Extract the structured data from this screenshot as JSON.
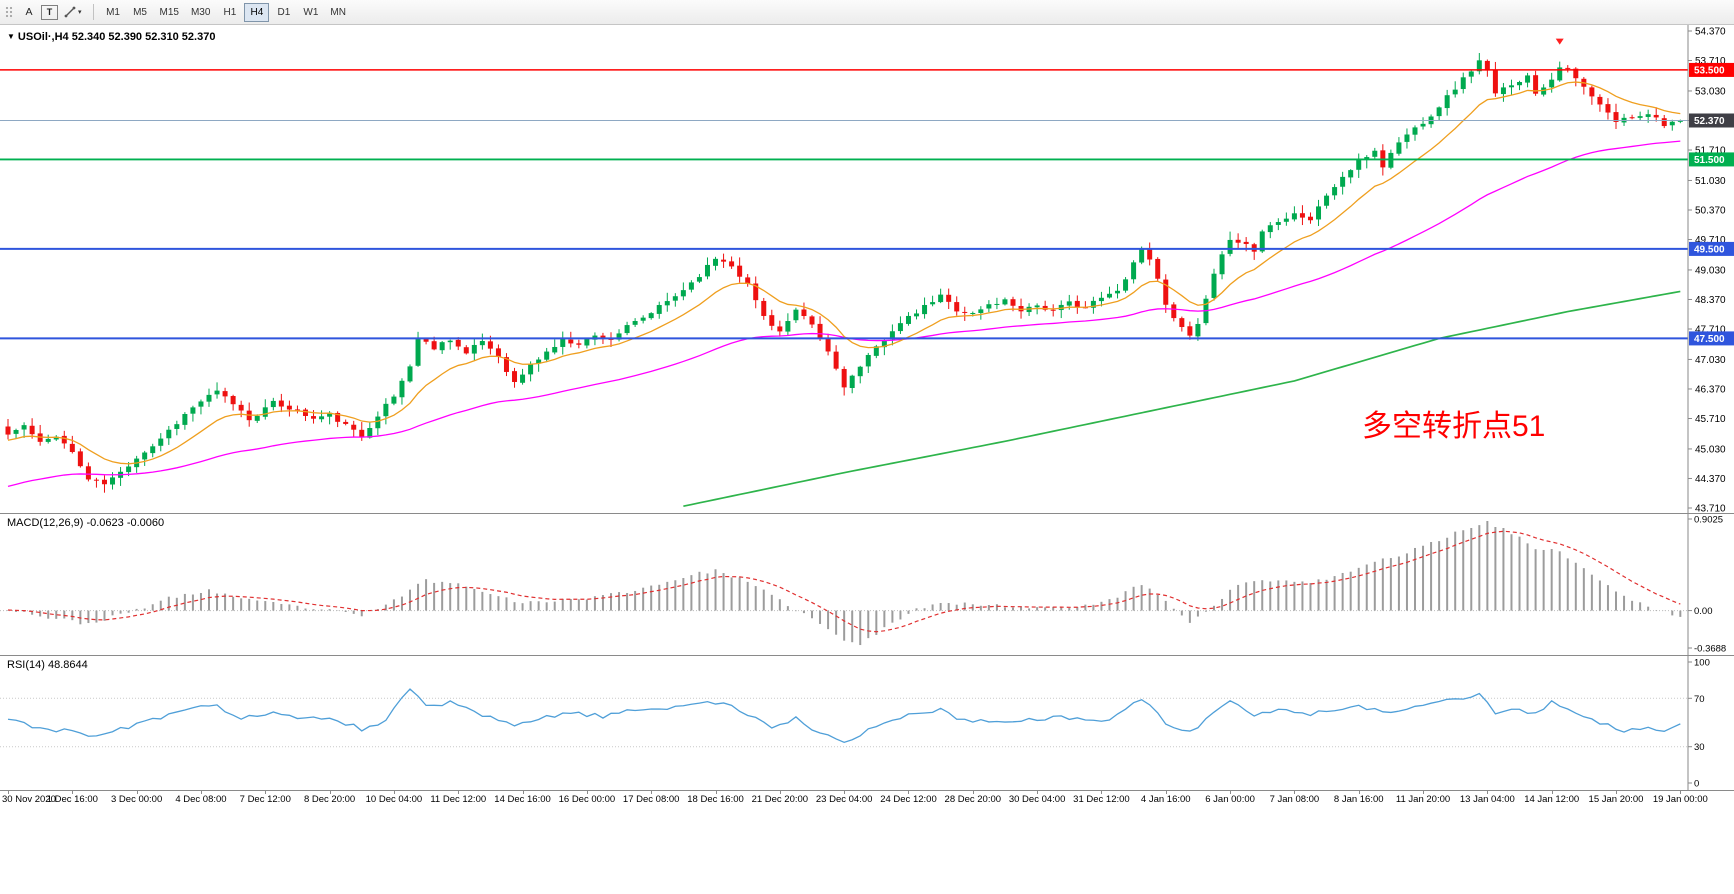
{
  "icons": {
    "collapse": "▼",
    "caret": "▾"
  },
  "toolbar": {
    "buttons": {
      "annotate": "A",
      "text": "T"
    },
    "timeframes": [
      "M1",
      "M5",
      "M15",
      "M30",
      "H1",
      "H4",
      "D1",
      "W1",
      "MN"
    ],
    "active_timeframe": "H4"
  },
  "chart": {
    "symbol_line": "USOil·,H4  52.340 52.390 52.310 52.370",
    "annotation": "多空转折点51",
    "annotation_color": "#ff0000",
    "colors": {
      "up": "#00a94f",
      "down": "#ee1111",
      "ma_fast": "#ef9f1f",
      "ma_slow": "#ff00ff",
      "ma_long": "#2eb44b",
      "current_line": "#8ea8c3",
      "current_badge": "#3f3f46",
      "axis_line": "#8a8a8a"
    },
    "price_axis": {
      "max": 54.37,
      "min": 43.71,
      "ticks": [
        "54.370",
        "53.710",
        "53.030",
        "52.370",
        "51.710",
        "51.030",
        "50.370",
        "49.710",
        "49.030",
        "48.370",
        "47.710",
        "47.030",
        "46.370",
        "45.710",
        "45.030",
        "44.370",
        "43.710"
      ]
    },
    "hlines": [
      {
        "price": 53.5,
        "label": "53.500",
        "color": "#ff0000",
        "badge": "#ff0000",
        "weight": 1.5
      },
      {
        "price": 51.5,
        "label": "51.500",
        "color": "#00b050",
        "badge": "#00b050",
        "weight": 1.8
      },
      {
        "price": 49.5,
        "label": "49.500",
        "color": "#2f55dd",
        "badge": "#2f55dd",
        "weight": 2
      },
      {
        "price": 47.5,
        "label": "47.500",
        "color": "#2f55dd",
        "badge": "#2f55dd",
        "weight": 2
      }
    ],
    "current_price": {
      "value": 52.37,
      "label": "52.370"
    },
    "marker": {
      "index": 193,
      "price": 54.02,
      "color": "#ff2020"
    },
    "time_labels": [
      "30 Nov 2020",
      "1 Dec 16:00",
      "3 Dec 00:00",
      "4 Dec 08:00",
      "7 Dec 12:00",
      "8 Dec 20:00",
      "10 Dec 04:00",
      "11 Dec 12:00",
      "14 Dec 16:00",
      "16 Dec 00:00",
      "17 Dec 08:00",
      "18 Dec 16:00",
      "21 Dec 20:00",
      "23 Dec 04:00",
      "24 Dec 12:00",
      "28 Dec 20:00",
      "30 Dec 04:00",
      "31 Dec 12:00",
      "4 Jan 16:00",
      "6 Jan 00:00",
      "7 Jan 08:00",
      "8 Jan 16:00",
      "11 Jan 20:00",
      "13 Jan 04:00",
      "14 Jan 12:00",
      "15 Jan 20:00",
      "19 Jan 00:00"
    ],
    "bars_per_label": 8,
    "chart_data": {
      "type": "candlestick",
      "symbol": "USOil",
      "timeframe": "H4",
      "bar_count": 209,
      "ohlc_last": {
        "open": 52.34,
        "high": 52.39,
        "low": 52.31,
        "close": 52.37
      },
      "price_waypoints": [
        [
          0,
          45.35
        ],
        [
          2,
          45.55
        ],
        [
          4,
          45.15
        ],
        [
          6,
          45.35
        ],
        [
          8,
          44.95
        ],
        [
          10,
          44.35
        ],
        [
          12,
          44.25
        ],
        [
          14,
          44.5
        ],
        [
          16,
          44.85
        ],
        [
          18,
          45.1
        ],
        [
          20,
          45.45
        ],
        [
          22,
          45.8
        ],
        [
          24,
          46.1
        ],
        [
          26,
          46.3
        ],
        [
          28,
          46.05
        ],
        [
          30,
          45.7
        ],
        [
          33,
          46.05
        ],
        [
          35,
          45.95
        ],
        [
          38,
          45.7
        ],
        [
          40,
          45.8
        ],
        [
          42,
          45.55
        ],
        [
          44,
          45.3
        ],
        [
          46,
          45.8
        ],
        [
          48,
          46.2
        ],
        [
          50,
          46.9
        ],
        [
          51,
          47.5
        ],
        [
          53,
          47.3
        ],
        [
          55,
          47.5
        ],
        [
          57,
          47.15
        ],
        [
          59,
          47.45
        ],
        [
          61,
          47.1
        ],
        [
          63,
          46.5
        ],
        [
          65,
          46.9
        ],
        [
          67,
          47.2
        ],
        [
          69,
          47.45
        ],
        [
          71,
          47.4
        ],
        [
          73,
          47.55
        ],
        [
          75,
          47.5
        ],
        [
          77,
          47.75
        ],
        [
          79,
          47.95
        ],
        [
          81,
          48.2
        ],
        [
          83,
          48.45
        ],
        [
          85,
          48.75
        ],
        [
          87,
          49.1
        ],
        [
          88,
          49.3
        ],
        [
          90,
          49.15
        ],
        [
          92,
          48.7
        ],
        [
          94,
          48.0
        ],
        [
          96,
          47.65
        ],
        [
          98,
          48.1
        ],
        [
          100,
          47.8
        ],
        [
          102,
          47.2
        ],
        [
          104,
          46.45
        ],
        [
          106,
          46.85
        ],
        [
          108,
          47.3
        ],
        [
          110,
          47.7
        ],
        [
          112,
          47.95
        ],
        [
          114,
          48.2
        ],
        [
          116,
          48.45
        ],
        [
          118,
          48.15
        ],
        [
          120,
          48.05
        ],
        [
          122,
          48.25
        ],
        [
          124,
          48.35
        ],
        [
          126,
          48.15
        ],
        [
          128,
          48.25
        ],
        [
          130,
          48.1
        ],
        [
          132,
          48.3
        ],
        [
          134,
          48.2
        ],
        [
          136,
          48.4
        ],
        [
          138,
          48.55
        ],
        [
          140,
          49.2
        ],
        [
          141,
          49.5
        ],
        [
          142,
          49.3
        ],
        [
          144,
          48.3
        ],
        [
          146,
          47.7
        ],
        [
          147,
          47.55
        ],
        [
          148,
          47.8
        ],
        [
          150,
          48.9
        ],
        [
          152,
          49.75
        ],
        [
          154,
          49.6
        ],
        [
          155,
          49.45
        ],
        [
          156,
          49.9
        ],
        [
          158,
          50.15
        ],
        [
          160,
          50.3
        ],
        [
          162,
          50.15
        ],
        [
          164,
          50.7
        ],
        [
          166,
          51.1
        ],
        [
          168,
          51.45
        ],
        [
          170,
          51.7
        ],
        [
          171,
          51.35
        ],
        [
          173,
          51.9
        ],
        [
          175,
          52.2
        ],
        [
          177,
          52.5
        ],
        [
          179,
          52.9
        ],
        [
          181,
          53.3
        ],
        [
          183,
          53.7
        ],
        [
          184,
          53.45
        ],
        [
          185,
          52.95
        ],
        [
          187,
          53.2
        ],
        [
          189,
          53.35
        ],
        [
          190,
          53.0
        ],
        [
          192,
          53.3
        ],
        [
          193,
          53.6
        ],
        [
          194,
          53.5
        ],
        [
          196,
          53.1
        ],
        [
          198,
          52.7
        ],
        [
          200,
          52.35
        ],
        [
          202,
          52.45
        ],
        [
          204,
          52.55
        ],
        [
          206,
          52.3
        ],
        [
          208,
          52.37
        ]
      ],
      "ma_long_waypoints": [
        [
          84,
          43.75
        ],
        [
          104,
          44.5
        ],
        [
          124,
          45.2
        ],
        [
          144,
          45.95
        ],
        [
          160,
          46.55
        ],
        [
          178,
          47.5
        ],
        [
          194,
          48.1
        ],
        [
          208,
          48.55
        ]
      ]
    }
  },
  "macd": {
    "label": "MACD(12,26,9) -0.0623 -0.0060",
    "max": 0.9025,
    "min": -0.3688,
    "axis_ticks": [
      {
        "v": 0.9025,
        "label": "0.9025"
      },
      {
        "v": 0,
        "label": "0.00"
      },
      {
        "v": -0.3688,
        "label": "-0.3688"
      }
    ],
    "histogram_color": "#9c9c9c",
    "signal_color": "#e03030",
    "chart_data": {
      "type": "bar+line",
      "waypoints": [
        [
          0,
          0.02
        ],
        [
          5,
          -0.07
        ],
        [
          10,
          -0.13
        ],
        [
          15,
          -0.02
        ],
        [
          20,
          0.12
        ],
        [
          25,
          0.2
        ],
        [
          30,
          0.1
        ],
        [
          35,
          0.05
        ],
        [
          40,
          0.0
        ],
        [
          44,
          -0.05
        ],
        [
          48,
          0.1
        ],
        [
          52,
          0.3
        ],
        [
          56,
          0.26
        ],
        [
          60,
          0.18
        ],
        [
          64,
          0.07
        ],
        [
          68,
          0.1
        ],
        [
          73,
          0.13
        ],
        [
          79,
          0.22
        ],
        [
          84,
          0.33
        ],
        [
          88,
          0.4
        ],
        [
          92,
          0.28
        ],
        [
          96,
          0.1
        ],
        [
          100,
          -0.08
        ],
        [
          104,
          -0.3
        ],
        [
          106,
          -0.33
        ],
        [
          109,
          -0.18
        ],
        [
          112,
          -0.02
        ],
        [
          116,
          0.09
        ],
        [
          120,
          0.06
        ],
        [
          125,
          0.04
        ],
        [
          130,
          0.03
        ],
        [
          135,
          0.06
        ],
        [
          138,
          0.14
        ],
        [
          141,
          0.26
        ],
        [
          144,
          0.1
        ],
        [
          147,
          -0.12
        ],
        [
          150,
          0.06
        ],
        [
          153,
          0.26
        ],
        [
          157,
          0.3
        ],
        [
          161,
          0.27
        ],
        [
          165,
          0.33
        ],
        [
          169,
          0.45
        ],
        [
          173,
          0.55
        ],
        [
          177,
          0.66
        ],
        [
          181,
          0.8
        ],
        [
          184,
          0.88
        ],
        [
          187,
          0.76
        ],
        [
          190,
          0.62
        ],
        [
          193,
          0.58
        ],
        [
          196,
          0.42
        ],
        [
          199,
          0.24
        ],
        [
          202,
          0.1
        ],
        [
          205,
          0.01
        ],
        [
          208,
          -0.0623
        ]
      ]
    }
  },
  "rsi": {
    "label": "RSI(14) 48.8644",
    "max": 100,
    "min": 0,
    "axis_ticks": [
      {
        "v": 100,
        "label": "100"
      },
      {
        "v": 70,
        "label": "70"
      },
      {
        "v": 30,
        "label": "30"
      },
      {
        "v": 0,
        "label": "0"
      }
    ],
    "levels": [
      70,
      30
    ],
    "line_color": "#4f9fd8",
    "chart_data": {
      "type": "line",
      "waypoints": [
        [
          0,
          52
        ],
        [
          4,
          46
        ],
        [
          8,
          42
        ],
        [
          11,
          38
        ],
        [
          14,
          45
        ],
        [
          18,
          52
        ],
        [
          23,
          61
        ],
        [
          26,
          64
        ],
        [
          29,
          54
        ],
        [
          33,
          58
        ],
        [
          36,
          52
        ],
        [
          40,
          54
        ],
        [
          44,
          45
        ],
        [
          47,
          52
        ],
        [
          50,
          77
        ],
        [
          52,
          64
        ],
        [
          55,
          66
        ],
        [
          58,
          58
        ],
        [
          61,
          52
        ],
        [
          63,
          46
        ],
        [
          66,
          53
        ],
        [
          70,
          58
        ],
        [
          74,
          55
        ],
        [
          78,
          60
        ],
        [
          83,
          63
        ],
        [
          87,
          67
        ],
        [
          89,
          66
        ],
        [
          92,
          56
        ],
        [
          95,
          47
        ],
        [
          98,
          53
        ],
        [
          101,
          42
        ],
        [
          104,
          34
        ],
        [
          107,
          44
        ],
        [
          110,
          52
        ],
        [
          113,
          57
        ],
        [
          116,
          60
        ],
        [
          119,
          52
        ],
        [
          123,
          50
        ],
        [
          127,
          53
        ],
        [
          131,
          55
        ],
        [
          134,
          51
        ],
        [
          137,
          54
        ],
        [
          140,
          66
        ],
        [
          141,
          70
        ],
        [
          144,
          49
        ],
        [
          147,
          41
        ],
        [
          150,
          59
        ],
        [
          152,
          67
        ],
        [
          155,
          57
        ],
        [
          158,
          61
        ],
        [
          161,
          56
        ],
        [
          164,
          60
        ],
        [
          167,
          64
        ],
        [
          170,
          61
        ],
        [
          172,
          57
        ],
        [
          175,
          64
        ],
        [
          178,
          68
        ],
        [
          181,
          71
        ],
        [
          183,
          74
        ],
        [
          185,
          58
        ],
        [
          188,
          61
        ],
        [
          190,
          57
        ],
        [
          192,
          67
        ],
        [
          194,
          62
        ],
        [
          196,
          55
        ],
        [
          198,
          50
        ],
        [
          200,
          45
        ],
        [
          202,
          43
        ],
        [
          204,
          47
        ],
        [
          206,
          42
        ],
        [
          208,
          48.8644
        ]
      ]
    }
  }
}
